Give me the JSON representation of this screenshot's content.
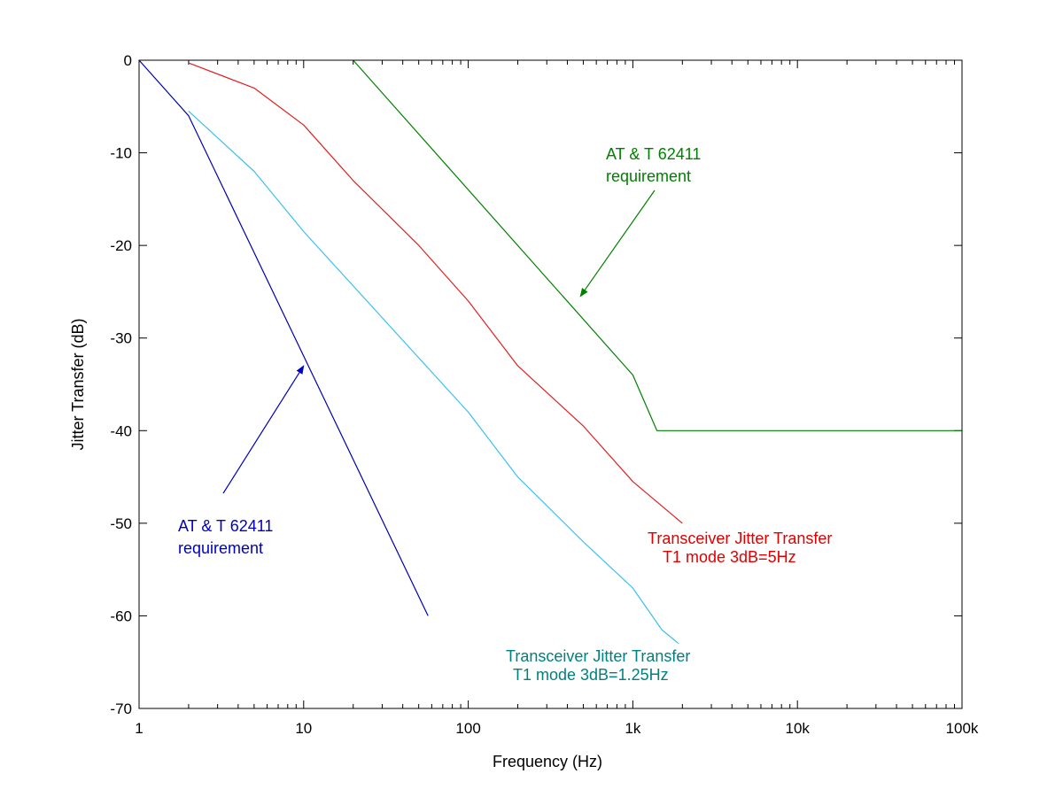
{
  "chart_data": {
    "type": "line",
    "title": "",
    "xlabel": "Frequency (Hz)",
    "ylabel": "Jitter Transfer (dB)",
    "xscale": "log",
    "xlim": [
      1,
      100000
    ],
    "ylim": [
      -70,
      0
    ],
    "grid": false,
    "xticks": [
      {
        "value": 1,
        "label": "1"
      },
      {
        "value": 10,
        "label": "10"
      },
      {
        "value": 100,
        "label": "100"
      },
      {
        "value": 1000,
        "label": "1k"
      },
      {
        "value": 10000,
        "label": "10k"
      },
      {
        "value": 100000,
        "label": "100k"
      }
    ],
    "yticks": [
      {
        "value": 0,
        "label": "0"
      },
      {
        "value": -10,
        "label": "-10"
      },
      {
        "value": -20,
        "label": "-20"
      },
      {
        "value": -30,
        "label": "-30"
      },
      {
        "value": -40,
        "label": "-40"
      },
      {
        "value": -50,
        "label": "-50"
      },
      {
        "value": -60,
        "label": "-60"
      },
      {
        "value": -70,
        "label": "-70"
      }
    ],
    "series": [
      {
        "name": "AT & T 62411 requirement (blue)",
        "color": "#0000b0",
        "points": [
          [
            1,
            0
          ],
          [
            2,
            -6
          ],
          [
            57,
            -60
          ]
        ]
      },
      {
        "name": "Transceiver Jitter Transfer T1 mode 3dB=1.25Hz",
        "color": "#3cc0ee",
        "points": [
          [
            2,
            -5.5
          ],
          [
            5,
            -12
          ],
          [
            10,
            -18.5
          ],
          [
            100,
            -38
          ],
          [
            200,
            -45
          ],
          [
            500,
            -52
          ],
          [
            1000,
            -57
          ],
          [
            1500,
            -61.5
          ],
          [
            1900,
            -63
          ]
        ]
      },
      {
        "name": "Transceiver Jitter Transfer T1 mode 3dB=5Hz",
        "color": "#e02020",
        "points": [
          [
            2,
            -0.3
          ],
          [
            5,
            -3
          ],
          [
            10,
            -7
          ],
          [
            20,
            -13
          ],
          [
            50,
            -20
          ],
          [
            100,
            -26
          ],
          [
            200,
            -33
          ],
          [
            500,
            -39.5
          ],
          [
            1000,
            -45.5
          ],
          [
            2000,
            -50
          ]
        ]
      },
      {
        "name": "AT & T 62411 requirement (green)",
        "color": "#008000",
        "points": [
          [
            20,
            0
          ],
          [
            1000,
            -34
          ],
          [
            1400,
            -40
          ],
          [
            100000,
            -40
          ]
        ]
      }
    ],
    "annotations": [
      {
        "id": "green-req",
        "lines": [
          "AT & T 62411",
          "requirement"
        ],
        "color": "#008000",
        "arrow_to": [
          480,
          -25.5
        ]
      },
      {
        "id": "blue-req",
        "lines": [
          "AT & T 62411",
          "requirement"
        ],
        "color": "#0000c0",
        "arrow_to": [
          10,
          -33
        ]
      },
      {
        "id": "red-label",
        "lines": [
          "Transceiver Jitter Transfer",
          "T1 mode 3dB=5Hz"
        ],
        "color": "#e00000"
      },
      {
        "id": "cyan-label",
        "lines": [
          "Transceiver Jitter Transfer",
          "T1 mode 3dB=1.25Hz"
        ],
        "color": "#008080"
      }
    ]
  }
}
